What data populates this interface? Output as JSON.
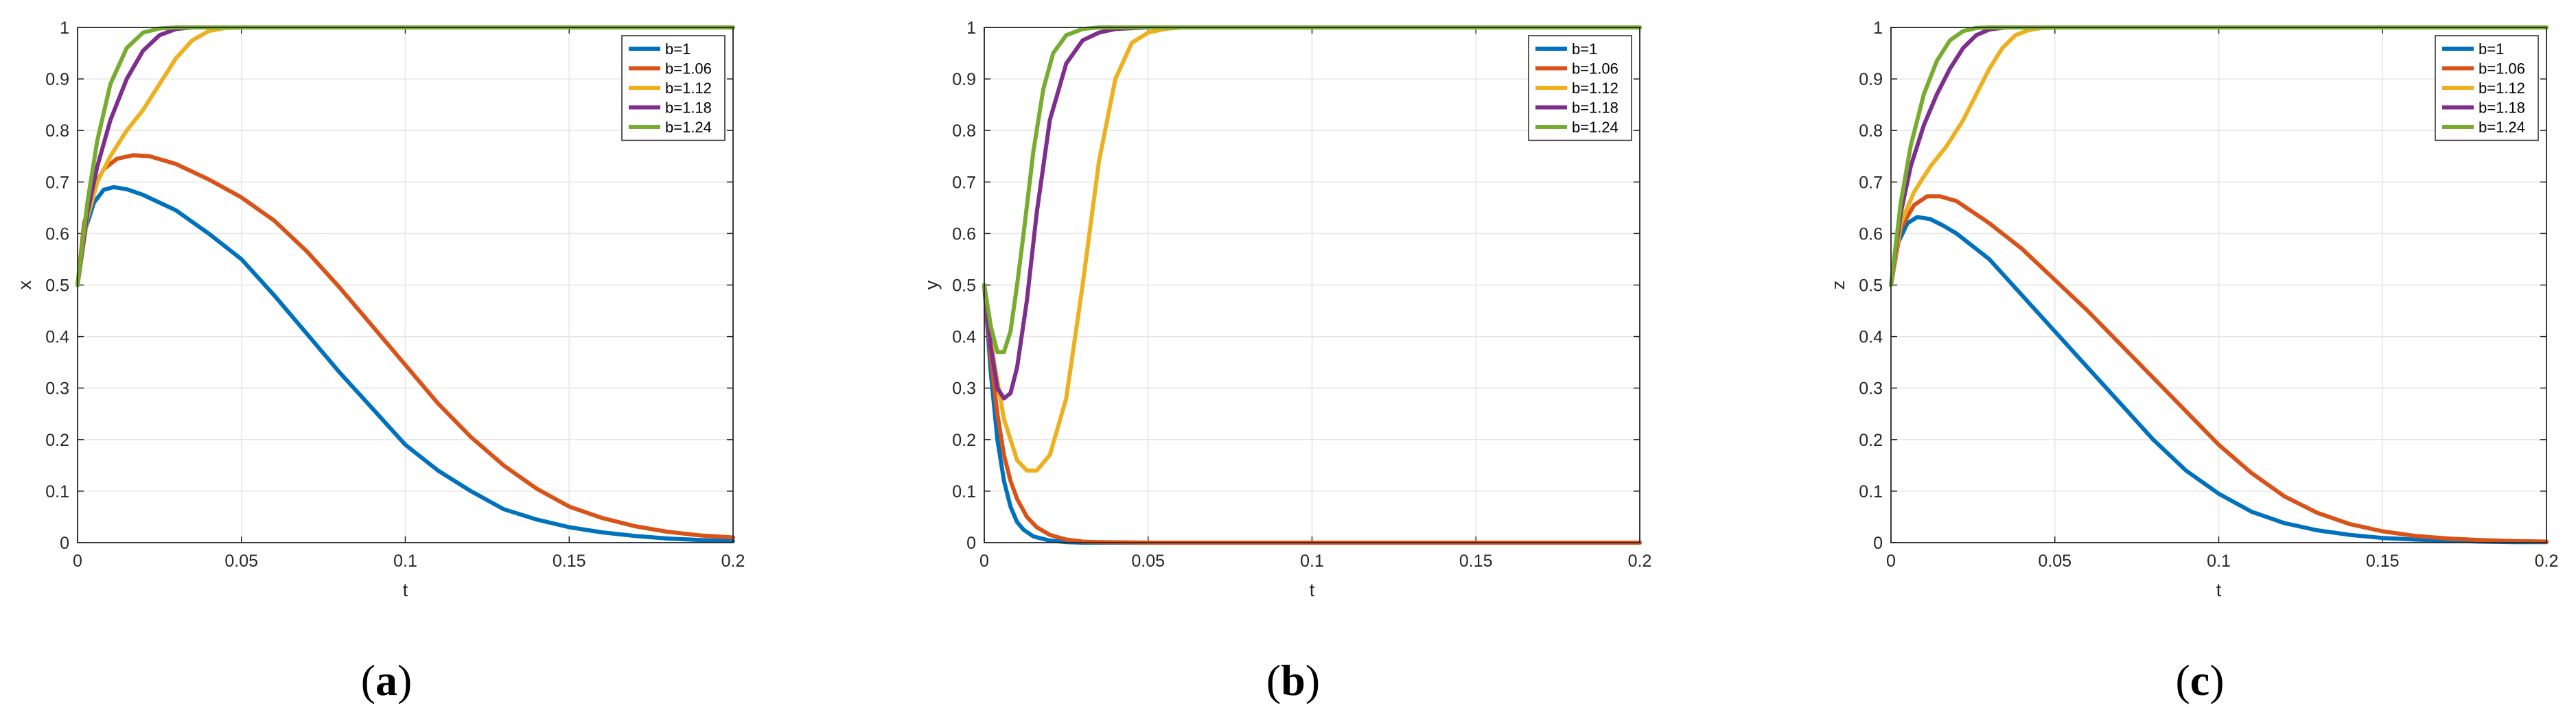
{
  "figure": {
    "panels": [
      {
        "caption": {
          "letter": "a"
        },
        "chart_data": {
          "type": "line",
          "xlabel": "t",
          "ylabel": "x",
          "xlim": [
            0,
            0.2
          ],
          "ylim": [
            0,
            1
          ],
          "xticks": [
            "0",
            "0.05",
            "0.1",
            "0.15",
            "0.2"
          ],
          "yticks": [
            "0",
            "0.1",
            "0.2",
            "0.3",
            "0.4",
            "0.5",
            "0.6",
            "0.7",
            "0.8",
            "0.9",
            "1"
          ],
          "grid": true,
          "legend_position": "top-right",
          "series": [
            {
              "name": "b=1",
              "color": "#0072BD",
              "x": [
                0,
                0.002,
                0.005,
                0.008,
                0.011,
                0.015,
                0.02,
                0.03,
                0.04,
                0.05,
                0.06,
                0.07,
                0.08,
                0.09,
                0.1,
                0.11,
                0.12,
                0.13,
                0.14,
                0.15,
                0.16,
                0.17,
                0.18,
                0.19,
                0.2
              ],
              "y": [
                0.5,
                0.6,
                0.66,
                0.685,
                0.69,
                0.686,
                0.675,
                0.645,
                0.6,
                0.55,
                0.48,
                0.405,
                0.33,
                0.26,
                0.19,
                0.14,
                0.1,
                0.065,
                0.045,
                0.03,
                0.02,
                0.013,
                0.008,
                0.005,
                0.003
              ]
            },
            {
              "name": "b=1.06",
              "color": "#D95319",
              "x": [
                0,
                0.002,
                0.005,
                0.008,
                0.012,
                0.017,
                0.022,
                0.03,
                0.04,
                0.05,
                0.06,
                0.07,
                0.08,
                0.09,
                0.1,
                0.11,
                0.12,
                0.13,
                0.14,
                0.15,
                0.16,
                0.17,
                0.18,
                0.19,
                0.2
              ],
              "y": [
                0.5,
                0.62,
                0.69,
                0.725,
                0.745,
                0.752,
                0.75,
                0.735,
                0.705,
                0.67,
                0.625,
                0.565,
                0.495,
                0.42,
                0.345,
                0.27,
                0.205,
                0.15,
                0.105,
                0.07,
                0.048,
                0.032,
                0.021,
                0.014,
                0.01
              ]
            },
            {
              "name": "b=1.12",
              "color": "#EDB120",
              "x": [
                0,
                0.003,
                0.006,
                0.01,
                0.015,
                0.02,
                0.025,
                0.03,
                0.035,
                0.04,
                0.045,
                0.05,
                0.06,
                0.08,
                0.1,
                0.12,
                0.14,
                0.16,
                0.18,
                0.2
              ],
              "y": [
                0.5,
                0.63,
                0.7,
                0.75,
                0.8,
                0.84,
                0.89,
                0.94,
                0.975,
                0.993,
                0.999,
                1,
                1,
                1,
                1,
                1,
                1,
                1,
                1,
                1
              ]
            },
            {
              "name": "b=1.18",
              "color": "#7E2F8E",
              "x": [
                0,
                0.003,
                0.006,
                0.01,
                0.015,
                0.02,
                0.025,
                0.03,
                0.035,
                0.04,
                0.05,
                0.06,
                0.08,
                0.1,
                0.12,
                0.14,
                0.16,
                0.18,
                0.2
              ],
              "y": [
                0.5,
                0.64,
                0.73,
                0.82,
                0.9,
                0.955,
                0.985,
                0.997,
                1,
                1,
                1,
                1,
                1,
                1,
                1,
                1,
                1,
                1,
                1
              ]
            },
            {
              "name": "b=1.24",
              "color": "#77AC30",
              "x": [
                0,
                0.003,
                0.006,
                0.01,
                0.015,
                0.02,
                0.025,
                0.03,
                0.04,
                0.05,
                0.06,
                0.08,
                0.1,
                0.12,
                0.14,
                0.16,
                0.18,
                0.2
              ],
              "y": [
                0.5,
                0.66,
                0.78,
                0.89,
                0.96,
                0.99,
                0.998,
                1,
                1,
                1,
                1,
                1,
                1,
                1,
                1,
                1,
                1,
                1
              ]
            }
          ]
        }
      },
      {
        "caption": {
          "letter": "b"
        },
        "chart_data": {
          "type": "line",
          "xlabel": "t",
          "ylabel": "y",
          "xlim": [
            0,
            0.2
          ],
          "ylim": [
            0,
            1
          ],
          "xticks": [
            "0",
            "0.05",
            "0.1",
            "0.15",
            "0.2"
          ],
          "yticks": [
            "0",
            "0.1",
            "0.2",
            "0.3",
            "0.4",
            "0.5",
            "0.6",
            "0.7",
            "0.8",
            "0.9",
            "1"
          ],
          "grid": true,
          "legend_position": "top-right",
          "series": [
            {
              "name": "b=1",
              "color": "#0072BD",
              "x": [
                0,
                0.002,
                0.004,
                0.006,
                0.008,
                0.01,
                0.012,
                0.015,
                0.02,
                0.025,
                0.03,
                0.05,
                0.1,
                0.15,
                0.2
              ],
              "y": [
                0.5,
                0.33,
                0.2,
                0.12,
                0.07,
                0.04,
                0.025,
                0.012,
                0.004,
                0.001,
                0,
                0,
                0,
                0,
                0
              ]
            },
            {
              "name": "b=1.06",
              "color": "#D95319",
              "x": [
                0,
                0.002,
                0.004,
                0.006,
                0.008,
                0.01,
                0.013,
                0.016,
                0.02,
                0.025,
                0.03,
                0.035,
                0.05,
                0.1,
                0.15,
                0.2
              ],
              "y": [
                0.5,
                0.36,
                0.25,
                0.17,
                0.12,
                0.085,
                0.05,
                0.03,
                0.015,
                0.006,
                0.002,
                0.001,
                0,
                0,
                0,
                0
              ]
            },
            {
              "name": "b=1.12",
              "color": "#EDB120",
              "x": [
                0,
                0.003,
                0.006,
                0.01,
                0.013,
                0.016,
                0.02,
                0.025,
                0.03,
                0.035,
                0.04,
                0.045,
                0.05,
                0.055,
                0.06,
                0.07,
                0.1,
                0.15,
                0.2
              ],
              "y": [
                0.5,
                0.35,
                0.24,
                0.16,
                0.14,
                0.14,
                0.17,
                0.28,
                0.5,
                0.74,
                0.9,
                0.97,
                0.99,
                0.997,
                1,
                1,
                1,
                1,
                1
              ]
            },
            {
              "name": "b=1.18",
              "color": "#7E2F8E",
              "x": [
                0,
                0.002,
                0.004,
                0.006,
                0.008,
                0.01,
                0.013,
                0.016,
                0.02,
                0.025,
                0.03,
                0.035,
                0.04,
                0.05,
                0.1,
                0.15,
                0.2
              ],
              "y": [
                0.5,
                0.38,
                0.3,
                0.28,
                0.29,
                0.34,
                0.47,
                0.64,
                0.82,
                0.93,
                0.975,
                0.99,
                0.997,
                1,
                1,
                1,
                1
              ]
            },
            {
              "name": "b=1.24",
              "color": "#77AC30",
              "x": [
                0,
                0.002,
                0.004,
                0.006,
                0.008,
                0.01,
                0.012,
                0.015,
                0.018,
                0.021,
                0.025,
                0.03,
                0.035,
                0.05,
                0.1,
                0.15,
                0.2
              ],
              "y": [
                0.5,
                0.42,
                0.37,
                0.37,
                0.41,
                0.5,
                0.6,
                0.76,
                0.88,
                0.95,
                0.985,
                0.997,
                1,
                1,
                1,
                1,
                1
              ]
            }
          ]
        }
      },
      {
        "caption": {
          "letter": "c"
        },
        "chart_data": {
          "type": "line",
          "xlabel": "t",
          "ylabel": "z",
          "xlim": [
            0,
            0.2
          ],
          "ylim": [
            0,
            1
          ],
          "xticks": [
            "0",
            "0.05",
            "0.1",
            "0.15",
            "0.2"
          ],
          "yticks": [
            "0",
            "0.1",
            "0.2",
            "0.3",
            "0.4",
            "0.5",
            "0.6",
            "0.7",
            "0.8",
            "0.9",
            "1"
          ],
          "grid": true,
          "legend_position": "top-right",
          "series": [
            {
              "name": "b=1",
              "color": "#0072BD",
              "x": [
                0,
                0.002,
                0.005,
                0.008,
                0.012,
                0.016,
                0.02,
                0.03,
                0.04,
                0.05,
                0.06,
                0.07,
                0.08,
                0.09,
                0.1,
                0.11,
                0.12,
                0.13,
                0.14,
                0.15,
                0.16,
                0.17,
                0.18,
                0.19,
                0.2
              ],
              "y": [
                0.5,
                0.58,
                0.62,
                0.632,
                0.628,
                0.615,
                0.6,
                0.55,
                0.48,
                0.41,
                0.34,
                0.27,
                0.2,
                0.14,
                0.095,
                0.06,
                0.038,
                0.024,
                0.015,
                0.009,
                0.006,
                0.004,
                0.002,
                0.001,
                0.001
              ]
            },
            {
              "name": "b=1.06",
              "color": "#D95319",
              "x": [
                0,
                0.003,
                0.007,
                0.011,
                0.015,
                0.02,
                0.03,
                0.04,
                0.05,
                0.06,
                0.07,
                0.08,
                0.09,
                0.1,
                0.11,
                0.12,
                0.13,
                0.14,
                0.15,
                0.16,
                0.17,
                0.18,
                0.19,
                0.2
              ],
              "y": [
                0.5,
                0.61,
                0.655,
                0.672,
                0.672,
                0.663,
                0.62,
                0.57,
                0.51,
                0.45,
                0.385,
                0.32,
                0.255,
                0.19,
                0.135,
                0.09,
                0.058,
                0.036,
                0.022,
                0.013,
                0.008,
                0.005,
                0.003,
                0.002
              ]
            },
            {
              "name": "b=1.12",
              "color": "#EDB120",
              "x": [
                0,
                0.003,
                0.007,
                0.012,
                0.017,
                0.022,
                0.026,
                0.03,
                0.034,
                0.038,
                0.042,
                0.046,
                0.05,
                0.06,
                0.08,
                0.1,
                0.12,
                0.14,
                0.16,
                0.18,
                0.2
              ],
              "y": [
                0.5,
                0.62,
                0.68,
                0.73,
                0.77,
                0.82,
                0.87,
                0.92,
                0.96,
                0.985,
                0.995,
                0.999,
                1,
                1,
                1,
                1,
                1,
                1,
                1,
                1,
                1
              ]
            },
            {
              "name": "b=1.18",
              "color": "#7E2F8E",
              "x": [
                0,
                0.003,
                0.006,
                0.01,
                0.014,
                0.018,
                0.022,
                0.026,
                0.03,
                0.035,
                0.04,
                0.05,
                0.06,
                0.08,
                0.1,
                0.12,
                0.14,
                0.16,
                0.18,
                0.2
              ],
              "y": [
                0.5,
                0.64,
                0.73,
                0.81,
                0.87,
                0.92,
                0.96,
                0.985,
                0.996,
                1,
                1,
                1,
                1,
                1,
                1,
                1,
                1,
                1,
                1,
                1
              ]
            },
            {
              "name": "b=1.24",
              "color": "#77AC30",
              "x": [
                0,
                0.003,
                0.006,
                0.01,
                0.014,
                0.018,
                0.022,
                0.026,
                0.03,
                0.04,
                0.05,
                0.06,
                0.08,
                0.1,
                0.12,
                0.14,
                0.16,
                0.18,
                0.2
              ],
              "y": [
                0.5,
                0.66,
                0.77,
                0.87,
                0.935,
                0.975,
                0.993,
                0.999,
                1,
                1,
                1,
                1,
                1,
                1,
                1,
                1,
                1,
                1,
                1
              ]
            }
          ]
        }
      }
    ]
  }
}
